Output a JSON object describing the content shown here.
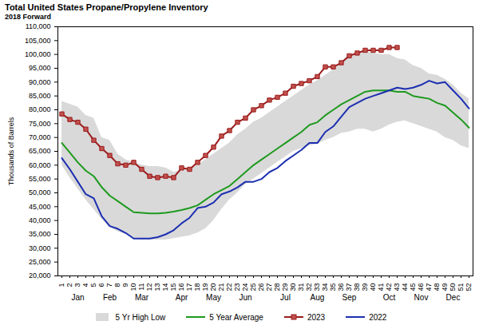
{
  "chart_data": {
    "type": "line",
    "title": "Total United States Propane/Propylene Inventory",
    "subtitle": "2018 Forward",
    "y_label": "Thousands of Barrels",
    "categories": [
      1,
      2,
      3,
      4,
      5,
      6,
      7,
      8,
      9,
      10,
      11,
      12,
      13,
      14,
      15,
      16,
      17,
      18,
      19,
      20,
      21,
      22,
      23,
      24,
      25,
      26,
      27,
      28,
      29,
      30,
      31,
      32,
      33,
      34,
      35,
      36,
      37,
      38,
      39,
      40,
      41,
      42,
      43,
      44,
      45,
      46,
      47,
      48,
      49,
      50,
      51,
      52
    ],
    "month_labels": [
      "Jan",
      "Feb",
      "Mar",
      "Apr",
      "May",
      "Jun",
      "Jul",
      "Aug",
      "Sep",
      "Oct",
      "Nov",
      "Dec"
    ],
    "ylim": [
      20000,
      110000
    ],
    "yticks": [
      {
        "value": 20000,
        "label": "20,000"
      },
      {
        "value": 25000,
        "label": "25,000"
      },
      {
        "value": 30000,
        "label": "30,000"
      },
      {
        "value": 35000,
        "label": "35,000"
      },
      {
        "value": 40000,
        "label": "40,000"
      },
      {
        "value": 45000,
        "label": "45,000"
      },
      {
        "value": 50000,
        "label": "50,000"
      },
      {
        "value": 55000,
        "label": "55,000"
      },
      {
        "value": 60000,
        "label": "60,000"
      },
      {
        "value": 65000,
        "label": "65,000"
      },
      {
        "value": 70000,
        "label": "70,000"
      },
      {
        "value": 75000,
        "label": "75,000"
      },
      {
        "value": 80000,
        "label": "80,000"
      },
      {
        "value": 85000,
        "label": "85,000"
      },
      {
        "value": 90000,
        "label": "90,000"
      },
      {
        "value": 95000,
        "label": "95,000"
      },
      {
        "value": 100000,
        "label": "100,000"
      },
      {
        "value": 105000,
        "label": "105,000"
      },
      {
        "value": 110000,
        "label": "110,000"
      }
    ],
    "grid": false,
    "legend": "bottom",
    "series": [
      {
        "name": "5 Yr High Low",
        "type": "area",
        "color": "#d9d9d9",
        "low": [
          60000,
          55500,
          51500,
          47500,
          44000,
          40500,
          37500,
          36000,
          35000,
          33500,
          33000,
          33000,
          33000,
          33000,
          33500,
          34000,
          34500,
          35500,
          37000,
          40000,
          44000,
          47500,
          50000,
          53000,
          55000,
          57000,
          59000,
          61000,
          63000,
          65000,
          66000,
          67000,
          67500,
          69000,
          70000,
          71500,
          72000,
          73000,
          73000,
          72000,
          73000,
          74500,
          75500,
          76000,
          75000,
          74000,
          73000,
          72000,
          70000,
          69000,
          67000,
          66000
        ],
        "high": [
          83000,
          82000,
          81000,
          78000,
          77000,
          70000,
          69000,
          64000,
          62000,
          61000,
          60000,
          59500,
          59500,
          59000,
          57500,
          58000,
          58500,
          60000,
          62000,
          64000,
          66000,
          68000,
          71000,
          73000,
          75500,
          77000,
          79000,
          81000,
          83000,
          85000,
          87000,
          89000,
          90500,
          92500,
          94500,
          97000,
          100000,
          100500,
          101000,
          100500,
          100000,
          100000,
          98500,
          98000,
          96000,
          95000,
          93000,
          92500,
          91000,
          89000,
          86000,
          84000
        ]
      },
      {
        "name": "5 Year Average",
        "type": "line",
        "color": "#1e9a1e",
        "values": [
          68000,
          64500,
          61000,
          58000,
          56000,
          52000,
          49000,
          47000,
          45000,
          43000,
          42800,
          42600,
          42600,
          42800,
          43200,
          43800,
          44500,
          45500,
          47500,
          49500,
          51000,
          52500,
          55000,
          57500,
          60000,
          62000,
          64000,
          66000,
          68000,
          70000,
          72000,
          74500,
          75500,
          78000,
          80000,
          82000,
          83500,
          85000,
          86500,
          87000,
          87000,
          87000,
          86500,
          86500,
          85000,
          84500,
          84000,
          82500,
          81500,
          79000,
          76500,
          73500
        ]
      },
      {
        "name": "2023",
        "type": "line",
        "color": "#9b1c1c",
        "marker": "square",
        "values": [
          78500,
          76500,
          75500,
          73000,
          69000,
          66000,
          63500,
          60500,
          60000,
          61000,
          58500,
          56000,
          55500,
          56000,
          55500,
          59000,
          58500,
          61000,
          63500,
          66500,
          70500,
          72500,
          75500,
          77000,
          80000,
          81500,
          83500,
          84500,
          86000,
          88500,
          89500,
          90500,
          92000,
          95500,
          95500,
          97000,
          99500,
          100500,
          101500,
          101500,
          101500,
          102500,
          102500,
          null,
          null,
          null,
          null,
          null,
          null,
          null,
          null,
          null
        ]
      },
      {
        "name": "2022",
        "type": "line",
        "color": "#1c2fb0",
        "values": [
          62500,
          58500,
          54000,
          49500,
          48000,
          41500,
          38000,
          37000,
          35500,
          33500,
          33500,
          33500,
          34000,
          35000,
          36500,
          39000,
          41000,
          44500,
          45000,
          46500,
          49500,
          50500,
          52000,
          54000,
          54000,
          55000,
          57500,
          59000,
          61500,
          63500,
          65500,
          68000,
          68000,
          72000,
          74000,
          77500,
          81000,
          82500,
          84000,
          85000,
          86000,
          87000,
          88000,
          87500,
          88000,
          89000,
          90500,
          89500,
          90000,
          87000,
          84000,
          80500
        ]
      }
    ]
  }
}
